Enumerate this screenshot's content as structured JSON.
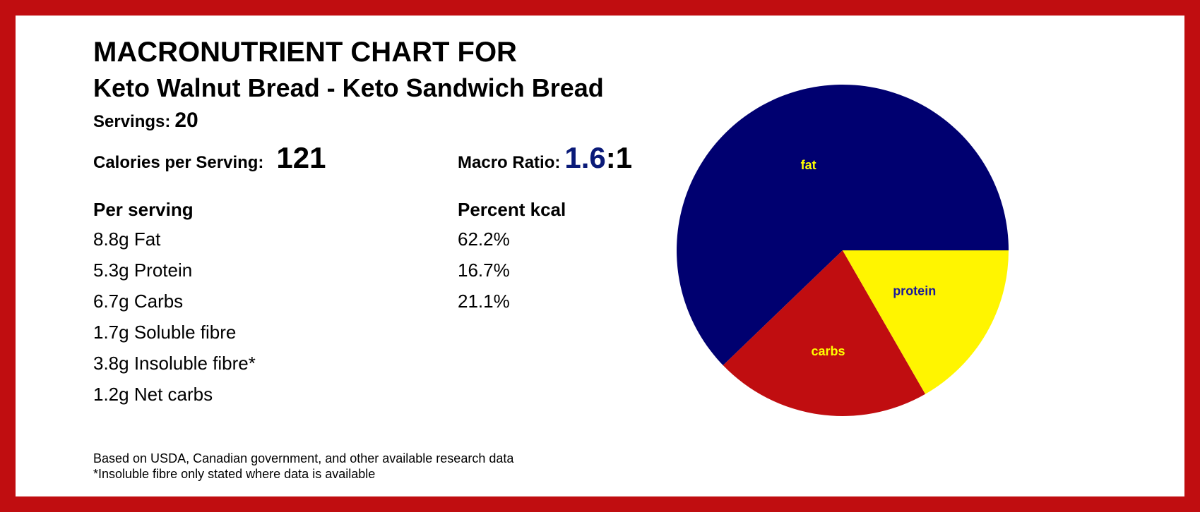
{
  "header": {
    "title": "MACRONUTRIENT CHART FOR",
    "subtitle": "Keto Walnut Bread - Keto Sandwich Bread"
  },
  "summary": {
    "servings_label": "Servings:",
    "servings_value": "20",
    "calories_label": "Calories per Serving:",
    "calories_value": "121",
    "ratio_label": "Macro Ratio:",
    "ratio_value": "1.6",
    "ratio_suffix": ":1"
  },
  "table": {
    "col1_header": "Per serving",
    "col2_header": "Percent kcal",
    "rows": [
      {
        "amount": "8.8g Fat",
        "percent": "62.2%"
      },
      {
        "amount": "5.3g Protein",
        "percent": "16.7%"
      },
      {
        "amount": "6.7g Carbs",
        "percent": "21.1%"
      },
      {
        "amount": "1.7g Soluble fibre",
        "percent": ""
      },
      {
        "amount": "3.8g Insoluble fibre*",
        "percent": ""
      },
      {
        "amount": "1.2g Net carbs",
        "percent": ""
      }
    ]
  },
  "footer": {
    "line1": "Based on USDA, Canadian government, and other available research data",
    "line2": "*Insoluble fibre only stated where data is available"
  },
  "chart_data": {
    "type": "pie",
    "slices": [
      {
        "label": "fat",
        "value": 62.2,
        "color": "#000070",
        "label_color": "#ffff00"
      },
      {
        "label": "carbs",
        "value": 21.1,
        "color": "#c00d10",
        "label_color": "#ffff00"
      },
      {
        "label": "protein",
        "value": 16.7,
        "color": "#fff500",
        "label_color": "#1a1a9a"
      }
    ]
  }
}
